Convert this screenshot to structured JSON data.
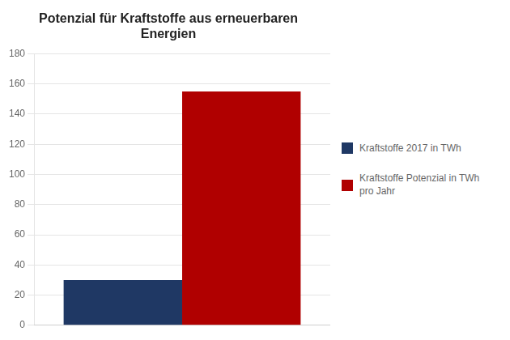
{
  "chart_data": {
    "type": "bar",
    "title": "Potenzial für Kraftstoffe aus erneuerbaren\nEnergien",
    "categories": [
      null
    ],
    "series": [
      {
        "name": "Kraftstoffe 2017 in TWh",
        "color": "#1F3864",
        "values": [
          30
        ]
      },
      {
        "name": "Kraftstoffe Potenzial in TWh\npro Jahr",
        "color": "#B00000",
        "values": [
          155
        ]
      }
    ],
    "ylim": [
      0,
      180
    ],
    "yticks": [
      0,
      20,
      40,
      60,
      80,
      100,
      120,
      140,
      160,
      180
    ],
    "grid": true,
    "legend": "right",
    "tick_labels": "y"
  }
}
